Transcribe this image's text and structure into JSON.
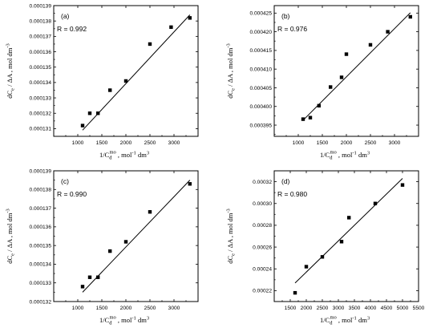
{
  "chart_data": [
    {
      "type": "scatter",
      "panel_label": "(a)",
      "annotation": "R = 0.992",
      "xlabel": "1/C_d^mo , mol^-1 dm^3",
      "ylabel": "dC_e / ΔA , mol dm^-3",
      "xlim": [
        500,
        3500
      ],
      "ylim": [
        0.0001305,
        0.000139
      ],
      "xticks": [
        1000,
        1500,
        2000,
        2500,
        3000
      ],
      "yticks": [
        0.000131,
        0.000132,
        0.000133,
        0.000134,
        0.000135,
        0.000136,
        0.000137,
        0.000138,
        0.000139
      ],
      "ytick_labels": [
        "0.000131",
        "0.000132",
        "0.000133",
        "0.000134",
        "0.000135",
        "0.000136",
        "0.000137",
        "0.000138",
        "0.000139"
      ],
      "x": [
        1100,
        1250,
        1420,
        1670,
        2000,
        2500,
        2940,
        3330
      ],
      "y": [
        0.0001312,
        0.000132,
        0.000132,
        0.0001335,
        0.0001341,
        0.0001365,
        0.0001376,
        0.0001382
      ],
      "fit": [
        [
          1100,
          0.0001309
        ],
        [
          3330,
          0.0001384
        ]
      ]
    },
    {
      "type": "scatter",
      "panel_label": "(b)",
      "annotation": "R = 0.976",
      "xlabel": "1/C_d^mo , mol^-1 dm^3",
      "ylabel": "dC_e / ΔA , mol dm^-3",
      "xlim": [
        500,
        3500
      ],
      "ylim": [
        0.000392,
        0.000427
      ],
      "xticks": [
        1000,
        1500,
        2000,
        2500,
        3000
      ],
      "yticks": [
        0.000395,
        0.0004,
        0.000405,
        0.00041,
        0.000415,
        0.00042,
        0.000425
      ],
      "ytick_labels": [
        "0.000395",
        "0.000400",
        "0.000405",
        "0.000410",
        "0.000415",
        "0.000420",
        "0.000425"
      ],
      "x": [
        1100,
        1250,
        1430,
        1670,
        1900,
        2000,
        2500,
        2860,
        3330
      ],
      "y": [
        0.0003966,
        0.000397,
        0.0004002,
        0.0004052,
        0.0004078,
        0.000414,
        0.0004165,
        0.00042,
        0.000424
      ],
      "fit": [
        [
          1100,
          0.0003963
        ],
        [
          3330,
          0.0004251
        ]
      ]
    },
    {
      "type": "scatter",
      "panel_label": "(c)",
      "annotation": "R = 0.990",
      "xlabel": "1/C_d^mo , mol^-1 dm^3",
      "ylabel": "dC_e / ΔA , mol dm^-3",
      "xlim": [
        500,
        3500
      ],
      "ylim": [
        0.000132,
        0.000139
      ],
      "xticks": [
        1000,
        1500,
        2000,
        2500,
        3000
      ],
      "yticks": [
        0.000132,
        0.000133,
        0.000134,
        0.000135,
        0.000136,
        0.000137,
        0.000138,
        0.000139
      ],
      "ytick_labels": [
        "0.000132",
        "0.000133",
        "0.000134",
        "0.000135",
        "0.000136",
        "0.000137",
        "0.000138",
        "0.000139"
      ],
      "x": [
        1100,
        1250,
        1420,
        1670,
        2000,
        2500,
        3330
      ],
      "y": [
        0.0001328,
        0.0001333,
        0.0001333,
        0.0001347,
        0.0001352,
        0.0001368,
        0.0001383
      ],
      "fit": [
        [
          1100,
          0.0001325
        ],
        [
          3330,
          0.0001385
        ]
      ]
    },
    {
      "type": "scatter",
      "panel_label": "(d)",
      "annotation": "R = 0.980",
      "xlabel": "1/C_d^mo , mol^-1 dm^3",
      "ylabel": "dC_e / ΔA , mol dm^-3",
      "xlim": [
        1000,
        5500
      ],
      "ylim": [
        0.00021,
        0.00033
      ],
      "xticks": [
        1500,
        2000,
        2500,
        3000,
        3500,
        4000,
        4500,
        5000,
        5500
      ],
      "yticks": [
        0.00022,
        0.00024,
        0.00026,
        0.00028,
        0.0003,
        0.00032
      ],
      "ytick_labels": [
        "0.00022",
        "0.00024",
        "0.00026",
        "0.00028",
        "0.00030",
        "0.00032"
      ],
      "x": [
        1650,
        2000,
        2500,
        3100,
        3330,
        4150,
        5000
      ],
      "y": [
        0.000218,
        0.000242,
        0.000251,
        0.000265,
        0.000287,
        0.0003,
        0.000317
      ],
      "fit": [
        [
          1650,
          0.000227
        ],
        [
          5000,
          0.000323
        ]
      ]
    }
  ]
}
